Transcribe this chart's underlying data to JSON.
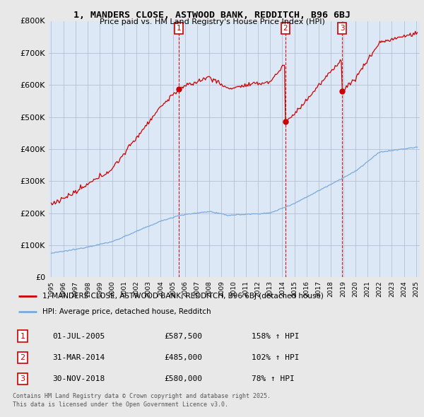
{
  "title": "1, MANDERS CLOSE, ASTWOOD BANK, REDDITCH, B96 6BJ",
  "subtitle": "Price paid vs. HM Land Registry's House Price Index (HPI)",
  "red_label": "1, MANDERS CLOSE, ASTWOOD BANK, REDDITCH, B96 6BJ (detached house)",
  "blue_label": "HPI: Average price, detached house, Redditch",
  "transactions": [
    {
      "num": 1,
      "date": "01-JUL-2005",
      "price": "£587,500",
      "hpi": "158% ↑ HPI",
      "year": 2005.5
    },
    {
      "num": 2,
      "date": "31-MAR-2014",
      "price": "£485,000",
      "hpi": "102% ↑ HPI",
      "year": 2014.25
    },
    {
      "num": 3,
      "date": "30-NOV-2018",
      "price": "£580,000",
      "hpi": "78% ↑ HPI",
      "year": 2018.92
    }
  ],
  "footer1": "Contains HM Land Registry data © Crown copyright and database right 2025.",
  "footer2": "This data is licensed under the Open Government Licence v3.0.",
  "ylim": [
    0,
    800000
  ],
  "xlim": [
    1994.8,
    2025.3
  ],
  "bg_color": "#e8e8e8",
  "plot_bg": "#dce8f5",
  "grid_color": "#aaaacc",
  "red_color": "#cc0000",
  "blue_color": "#7aaadd"
}
